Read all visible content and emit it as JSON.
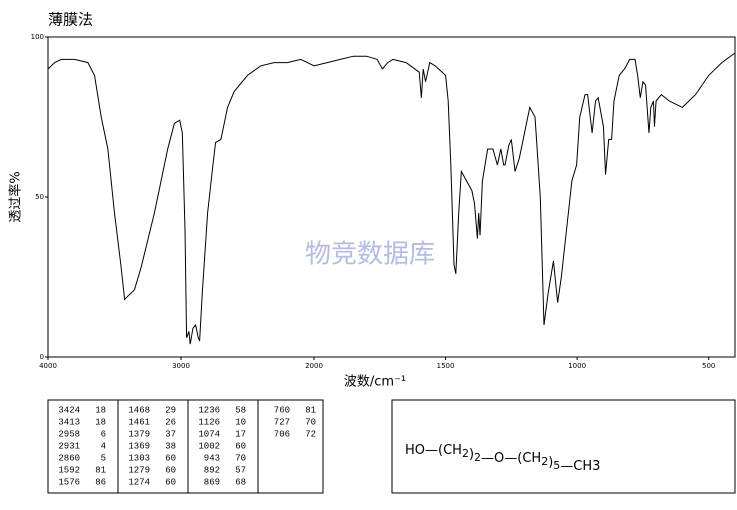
{
  "chart_data": {
    "type": "line",
    "title": "薄膜法",
    "y_label": "透过率%",
    "x_label": "波数/cm⁻¹",
    "watermark": "物竞数据库",
    "xlim": [
      4000,
      400
    ],
    "x_scale_break": 2000,
    "xticks": [
      4000,
      3000,
      2000,
      1500,
      1000,
      500
    ],
    "ylim": [
      0,
      100
    ],
    "yticks": [
      0,
      50,
      100
    ],
    "series": [
      {
        "color": "#000000",
        "x": [
          4000,
          3950,
          3900,
          3800,
          3700,
          3650,
          3600,
          3550,
          3500,
          3450,
          3424,
          3400,
          3350,
          3300,
          3200,
          3100,
          3050,
          3010,
          2990,
          2970,
          2958,
          2940,
          2931,
          2910,
          2890,
          2870,
          2860,
          2840,
          2800,
          2760,
          2740,
          2700,
          2650,
          2600,
          2500,
          2400,
          2300,
          2200,
          2100,
          2050,
          2000,
          1950,
          1900,
          1850,
          1800,
          1760,
          1740,
          1720,
          1700,
          1650,
          1600,
          1592,
          1585,
          1576,
          1560,
          1540,
          1500,
          1490,
          1480,
          1468,
          1461,
          1450,
          1440,
          1420,
          1400,
          1390,
          1379,
          1374,
          1369,
          1360,
          1340,
          1320,
          1303,
          1290,
          1279,
          1274,
          1260,
          1250,
          1236,
          1220,
          1200,
          1180,
          1160,
          1140,
          1126,
          1110,
          1090,
          1074,
          1060,
          1040,
          1020,
          1002,
          990,
          970,
          960,
          943,
          930,
          920,
          900,
          892,
          880,
          869,
          860,
          840,
          820,
          800,
          780,
          770,
          760,
          750,
          740,
          727,
          720,
          710,
          706,
          700,
          680,
          650,
          600,
          550,
          500,
          450,
          400
        ],
        "values": [
          90,
          92,
          93,
          93,
          92,
          88,
          75,
          65,
          45,
          28,
          18,
          19,
          21,
          28,
          45,
          65,
          73,
          74,
          70,
          40,
          6,
          8,
          4,
          9,
          10,
          6,
          5,
          20,
          45,
          60,
          67,
          68,
          78,
          83,
          88,
          91,
          92,
          92,
          93,
          92,
          91,
          92,
          93,
          94,
          94,
          93,
          90,
          92,
          93,
          92,
          89,
          81,
          90,
          86,
          92,
          91,
          88,
          80,
          60,
          29,
          26,
          45,
          58,
          55,
          52,
          48,
          37,
          45,
          38,
          55,
          65,
          65,
          60,
          65,
          60,
          60,
          66,
          68,
          58,
          62,
          70,
          78,
          75,
          50,
          10,
          20,
          30,
          17,
          25,
          40,
          55,
          60,
          75,
          82,
          82,
          70,
          80,
          81,
          72,
          57,
          68,
          68,
          80,
          88,
          90,
          93,
          93,
          88,
          81,
          86,
          85,
          70,
          78,
          80,
          72,
          80,
          82,
          80,
          78,
          82,
          88,
          92,
          95
        ]
      }
    ]
  },
  "peak_table": [
    [
      [
        3424,
        18
      ],
      [
        3413,
        18
      ],
      [
        2958,
        6
      ],
      [
        2931,
        4
      ],
      [
        2860,
        5
      ],
      [
        1592,
        81
      ],
      [
        1576,
        86
      ]
    ],
    [
      [
        1468,
        29
      ],
      [
        1461,
        26
      ],
      [
        1379,
        37
      ],
      [
        1369,
        38
      ],
      [
        1303,
        60
      ],
      [
        1279,
        60
      ],
      [
        1274,
        60
      ]
    ],
    [
      [
        1236,
        58
      ],
      [
        1126,
        10
      ],
      [
        1074,
        17
      ],
      [
        1002,
        60
      ],
      [
        943,
        70
      ],
      [
        892,
        57
      ],
      [
        869,
        68
      ]
    ],
    [
      [
        760,
        81
      ],
      [
        727,
        70
      ],
      [
        706,
        72
      ]
    ]
  ],
  "formula": [
    {
      "text": "HO—(CH"
    },
    {
      "text": "2",
      "sub": true
    },
    {
      "text": ")"
    },
    {
      "text": "2",
      "sub": true
    },
    {
      "text": "—O—(CH"
    },
    {
      "text": "2",
      "sub": true
    },
    {
      "text": ")"
    },
    {
      "text": "5",
      "sub": true
    },
    {
      "text": "—CH3"
    }
  ]
}
